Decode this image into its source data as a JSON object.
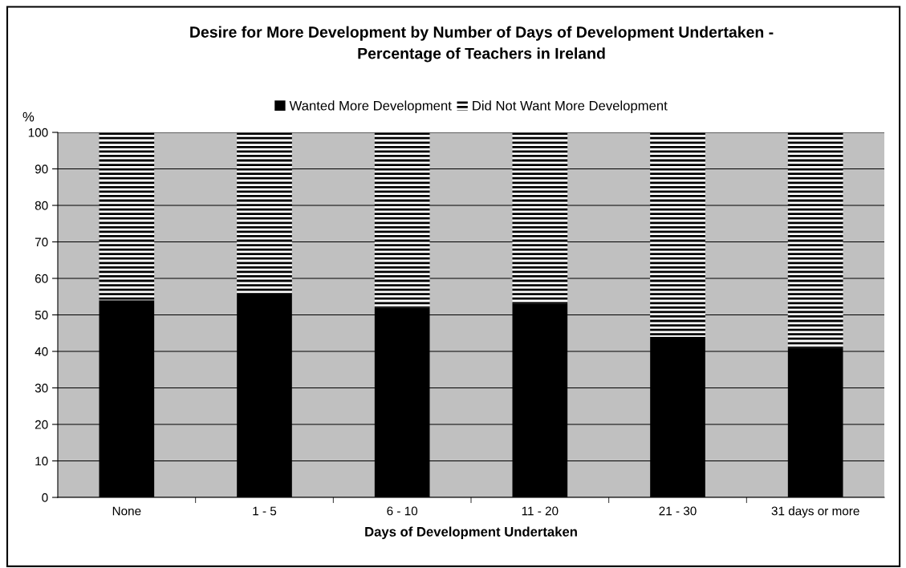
{
  "chart_data": {
    "type": "bar",
    "stacked": true,
    "title": "Desire for More Development by Number of Days of Development Undertaken -\nPercentage of Teachers in Ireland",
    "xlabel": "Days of Development Undertaken",
    "ylabel": "%",
    "categories": [
      "None",
      "1 - 5",
      "6 - 10",
      "11 - 20",
      "21 - 30",
      "31 days or more"
    ],
    "series": [
      {
        "name": "Wanted More Development",
        "color": "#000000",
        "values": [
          54,
          56,
          52,
          53,
          44,
          41
        ]
      },
      {
        "name": "Did Not Want More Development",
        "color": "#000000",
        "values": [
          46,
          44,
          48,
          47,
          56,
          59
        ]
      }
    ],
    "ylim": [
      0,
      100
    ],
    "yticks": [
      0,
      10,
      20,
      30,
      40,
      50,
      60,
      70,
      80,
      90,
      100
    ],
    "grid": "y",
    "legend": "top"
  }
}
